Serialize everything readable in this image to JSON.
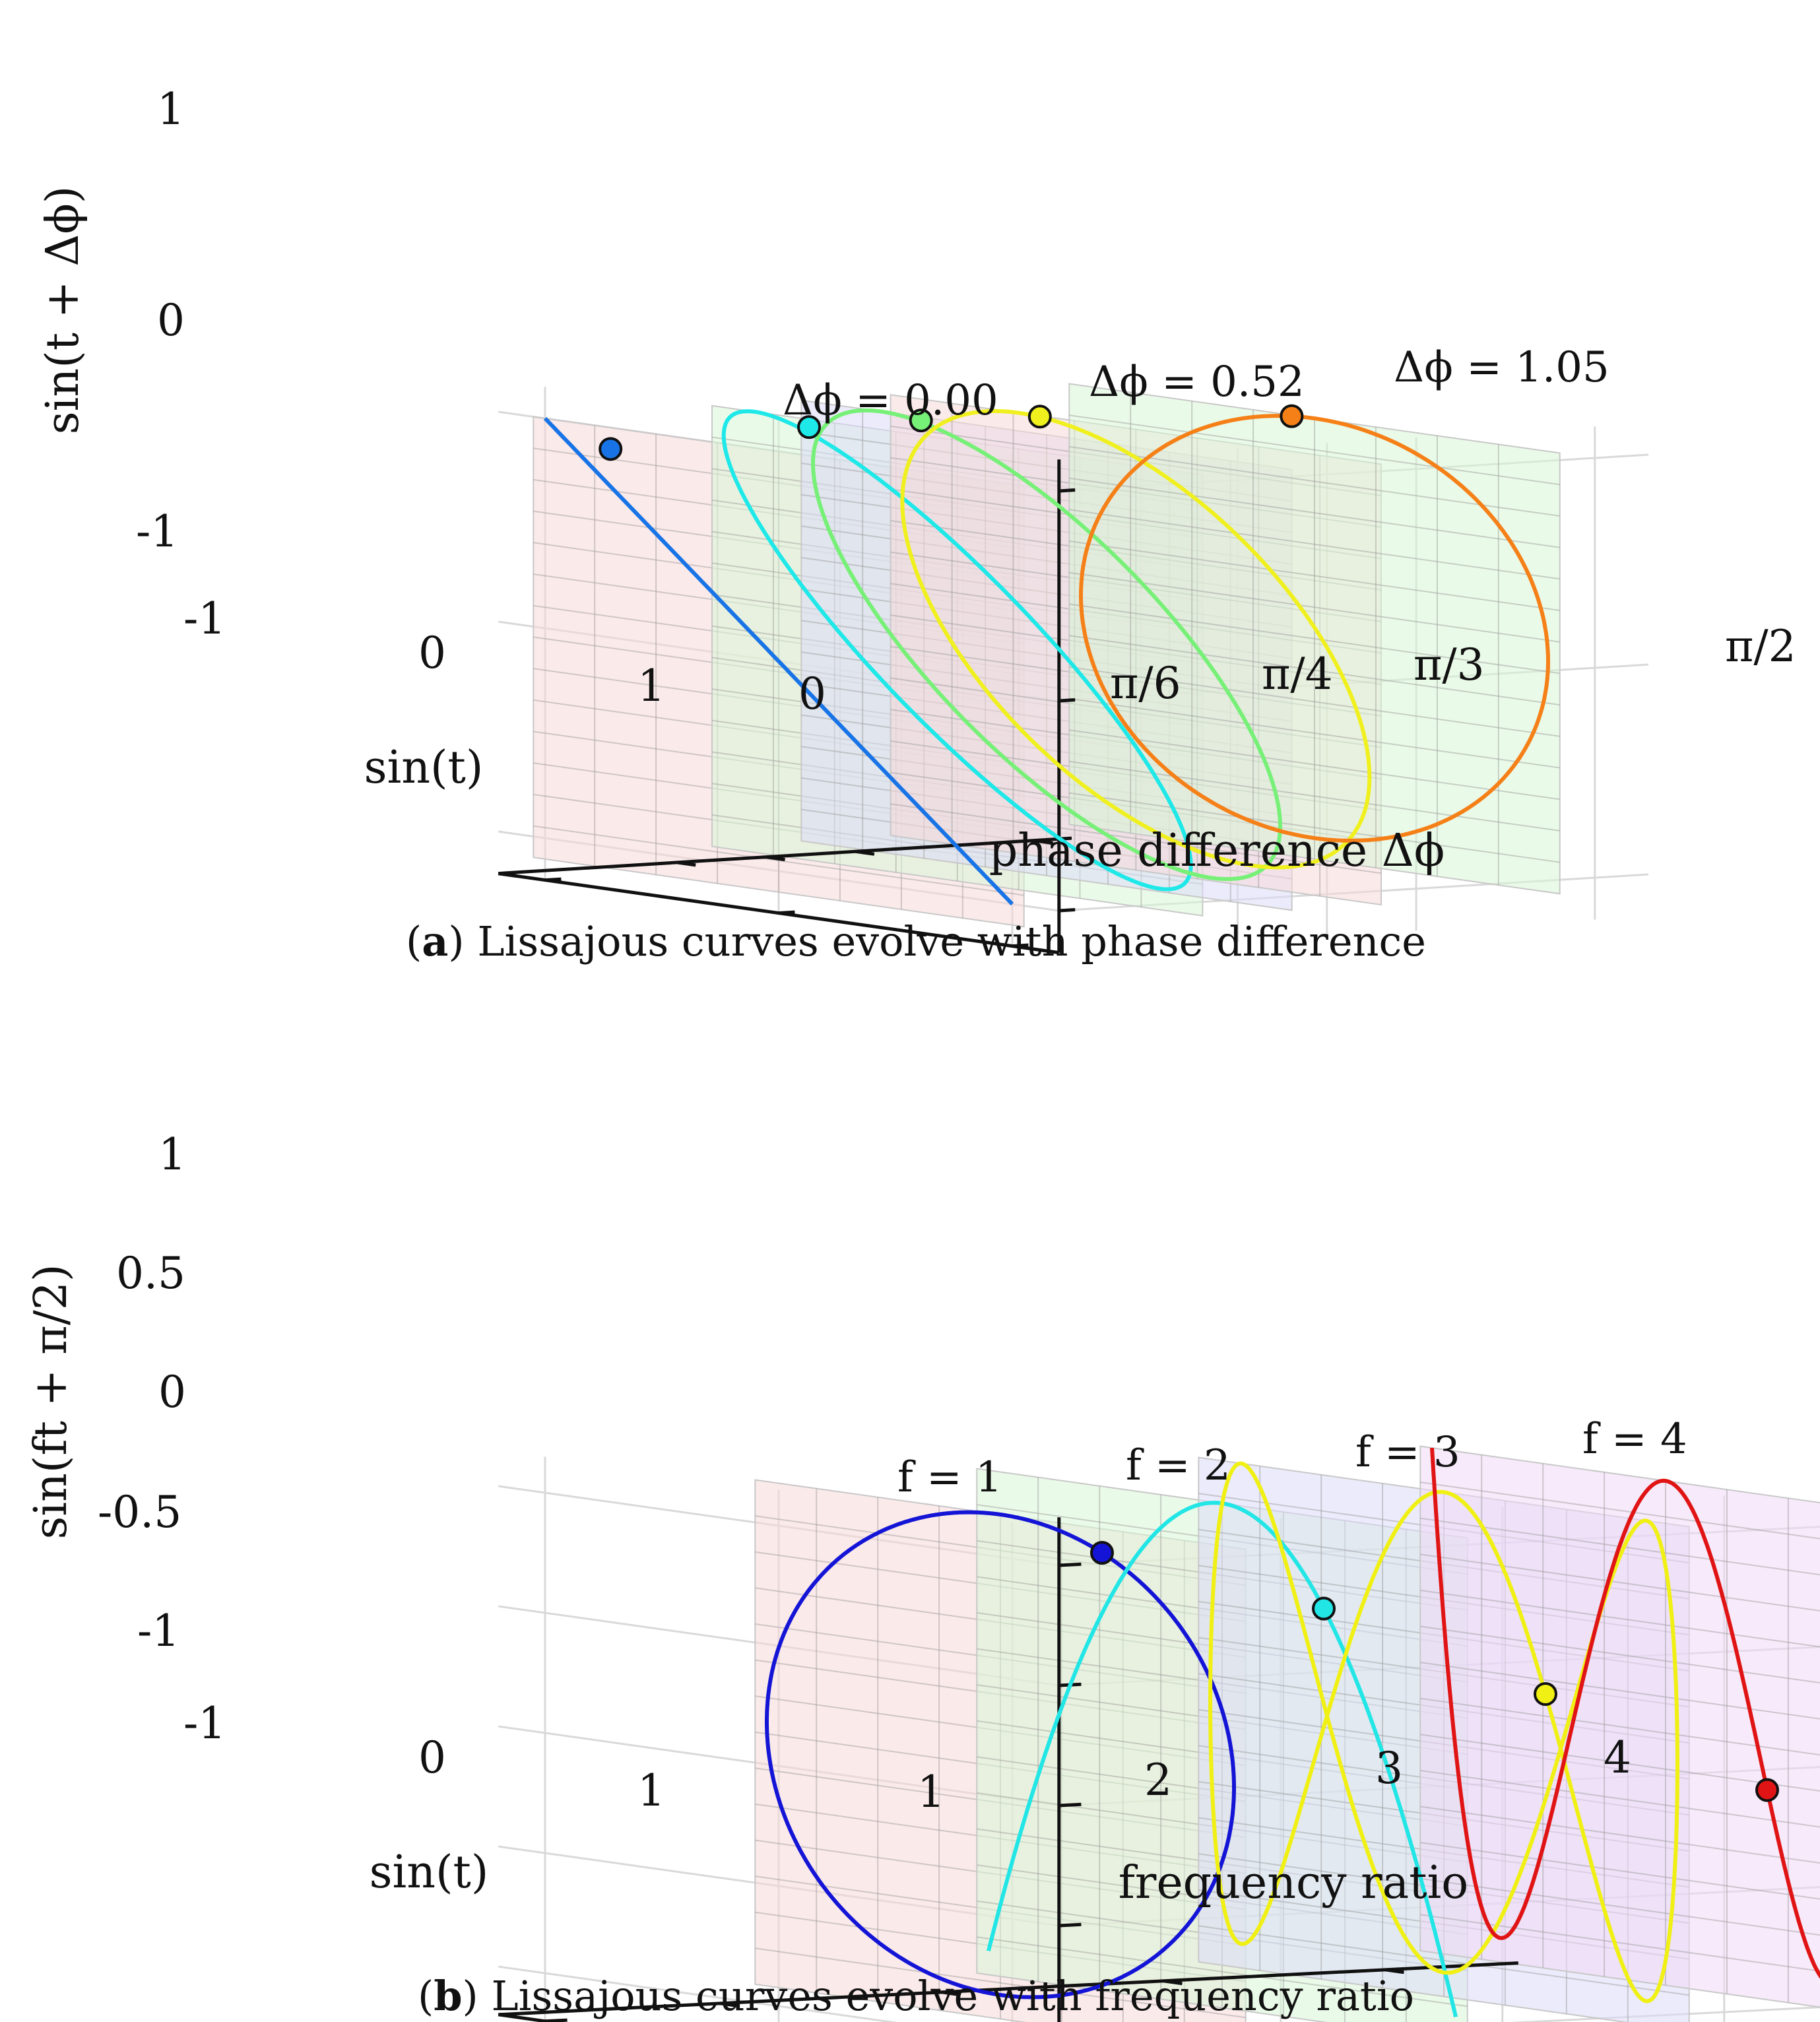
{
  "chart_data": [
    {
      "type": "line",
      "caption_letter": "a",
      "caption_text": ") Lissajous curves evolve with phase difference",
      "xlabel": "sin(t)",
      "ylabel": "sin(t + Δϕ)",
      "zlabel": "phase difference Δϕ",
      "x_ticks": [
        "-1",
        "0",
        "1"
      ],
      "y_ticks": [
        "1",
        "0",
        "-1"
      ],
      "z_ticks": [
        "0",
        "π/6",
        "π/4",
        "π/3",
        "π/2"
      ],
      "z_values": [
        0,
        0.5236,
        0.7854,
        1.0472,
        1.5708
      ],
      "grid": true,
      "annotations": [
        "Δϕ = 0.00",
        "Δϕ = 0.52",
        "Δϕ = 1.05"
      ],
      "series": [
        {
          "phase": 0,
          "color": "#1874e6"
        },
        {
          "phase": 0.5236,
          "color": "#1ee8e8"
        },
        {
          "phase": 0.7854,
          "color": "#77f077"
        },
        {
          "phase": 1.0472,
          "color": "#f0f01e"
        },
        {
          "phase": 1.5708,
          "color": "#f58018"
        }
      ],
      "plane_colors": [
        "#f7d8d8",
        "#d8f5d5",
        "#dadaf7",
        "#f7d8d8",
        "#d8f5d5"
      ]
    },
    {
      "type": "line",
      "caption_letter": "b",
      "caption_text": ") Lissajous curves evolve with frequency ratio",
      "xlabel": "sin(t)",
      "ylabel": "sin(ft + π/2)",
      "zlabel": "frequency ratio",
      "x_ticks": [
        "-1",
        "0",
        "1"
      ],
      "y_ticks": [
        "1",
        "0.5",
        "0",
        "-0.5",
        "-1"
      ],
      "z_ticks": [
        "1",
        "2",
        "3",
        "4"
      ],
      "grid": true,
      "annotations": [
        "f = 1",
        "f = 2",
        "f = 3",
        "f = 4"
      ],
      "series": [
        {
          "f": 1,
          "color": "#1414d6"
        },
        {
          "f": 2,
          "color": "#22e6e6"
        },
        {
          "f": 3,
          "color": "#f0f014"
        },
        {
          "f": 4,
          "color": "#e01414"
        }
      ],
      "plane_colors": [
        "#f7d8d8",
        "#d8f5d5",
        "#dadaf7",
        "#f0d8f5"
      ]
    }
  ]
}
